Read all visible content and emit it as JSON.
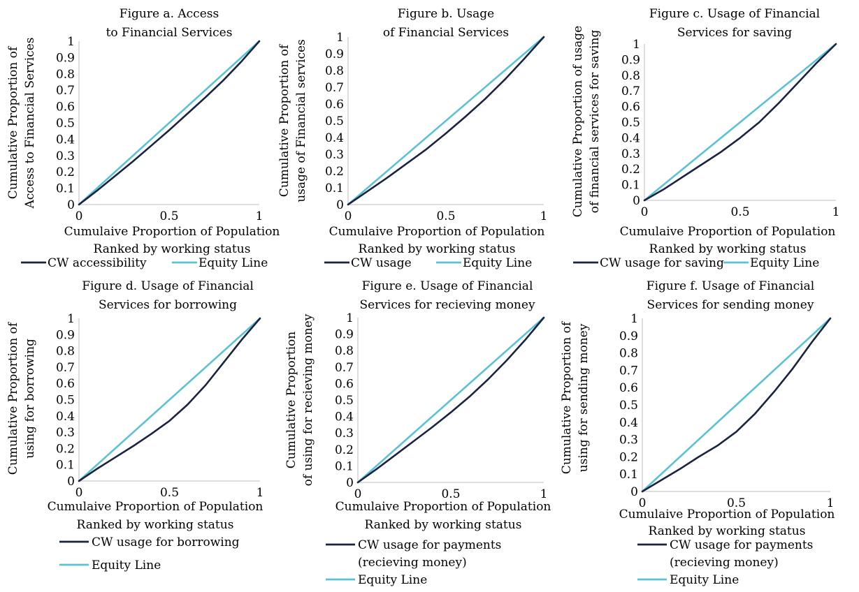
{
  "colors": {
    "cw_line": "#1a2340",
    "equity_line": "#5bc2d4",
    "axis": "#c9c9c9"
  },
  "chart_data": [
    {
      "type": "line",
      "title": [
        "Figure a. Access",
        "to Financial Services"
      ],
      "xlabel": [
        "Cumulaive Proportion of Population",
        "Ranked by working status"
      ],
      "ylabel": [
        "Cumulative Proportion of",
        "Access to Financial Services"
      ],
      "xlim": [
        0,
        1
      ],
      "ylim": [
        0,
        1
      ],
      "x_ticks": [
        "0",
        "0.5",
        "1"
      ],
      "y_ticks": [
        "0",
        "0.1",
        "0.2",
        "0.3",
        "0.4",
        "0.5",
        "0.6",
        "0.7",
        "0.8",
        "0.9",
        "1"
      ],
      "legend_position": "bottom",
      "series": [
        {
          "name": "CW accessibility",
          "x": [
            0,
            0.1,
            0.2,
            0.3,
            0.4,
            0.5,
            0.6,
            0.7,
            0.8,
            0.9,
            1
          ],
          "y": [
            0,
            0.085,
            0.175,
            0.265,
            0.36,
            0.455,
            0.555,
            0.655,
            0.76,
            0.875,
            1
          ]
        },
        {
          "name": "Equity Line",
          "x": [
            0,
            1
          ],
          "y": [
            0,
            1
          ]
        }
      ]
    },
    {
      "type": "line",
      "title": [
        "Figure b. Usage",
        "of Financial Services"
      ],
      "xlabel": [
        "Cumulaive Proportion of Population",
        "Ranked by working status"
      ],
      "ylabel": [
        "Cumulative Proportion of",
        "usage of Financial services"
      ],
      "xlim": [
        0,
        1
      ],
      "ylim": [
        0,
        1
      ],
      "x_ticks": [
        "0",
        "0.5",
        "1"
      ],
      "y_ticks": [
        "0",
        "0.1",
        "0.2",
        "0.3",
        "0.4",
        "0.5",
        "0.6",
        "0.7",
        "0.8",
        "0.9",
        "1"
      ],
      "legend_position": "bottom",
      "series": [
        {
          "name": "CW usage",
          "x": [
            0,
            0.1,
            0.2,
            0.3,
            0.4,
            0.5,
            0.6,
            0.7,
            0.8,
            0.9,
            1
          ],
          "y": [
            0,
            0.08,
            0.16,
            0.245,
            0.33,
            0.425,
            0.525,
            0.63,
            0.745,
            0.87,
            1
          ]
        },
        {
          "name": "Equity Line",
          "x": [
            0,
            1
          ],
          "y": [
            0,
            1
          ]
        }
      ]
    },
    {
      "type": "line",
      "title": [
        "Figure c. Usage of Financial",
        "Services for saving"
      ],
      "xlabel": [
        "Cumulaive Proportion of Population",
        "Ranked by working status"
      ],
      "ylabel": [
        "Cumulative Proportion of usage",
        "of financial services for saving"
      ],
      "xlim": [
        0,
        1
      ],
      "ylim": [
        0,
        1
      ],
      "x_ticks": [
        "0",
        "0.5",
        "1"
      ],
      "y_ticks": [
        "0",
        "0.1",
        "0.2",
        "0.3",
        "0.4",
        "0.5",
        "0.6",
        "0.7",
        "0.8",
        "0.9",
        "1"
      ],
      "legend_position": "bottom",
      "series": [
        {
          "name": "CW usage for saving",
          "x": [
            0,
            0.1,
            0.2,
            0.3,
            0.4,
            0.5,
            0.6,
            0.7,
            0.8,
            0.9,
            1
          ],
          "y": [
            0,
            0.07,
            0.15,
            0.23,
            0.31,
            0.4,
            0.5,
            0.62,
            0.75,
            0.88,
            1
          ]
        },
        {
          "name": "Equity Line",
          "x": [
            0,
            1
          ],
          "y": [
            0,
            1
          ]
        }
      ]
    },
    {
      "type": "line",
      "title": [
        "Figure d. Usage of Financial",
        "Services for borrowing"
      ],
      "xlabel": [
        "Cumulaive Proportion of Population",
        "Ranked by working status"
      ],
      "ylabel": [
        "Cumulative Proportion of",
        "using for borrowing"
      ],
      "xlim": [
        0,
        1
      ],
      "ylim": [
        0,
        1
      ],
      "x_ticks": [
        "0",
        "0.5",
        "1"
      ],
      "y_ticks": [
        "0",
        "0.1",
        "0.2",
        "0.3",
        "0.4",
        "0.5",
        "0.6",
        "0.7",
        "0.8",
        "0.9",
        "1"
      ],
      "legend_position": "bottom",
      "series": [
        {
          "name": "CW usage for borrowing",
          "x": [
            0,
            0.1,
            0.2,
            0.3,
            0.4,
            0.5,
            0.6,
            0.7,
            0.8,
            0.9,
            1
          ],
          "y": [
            0,
            0.075,
            0.145,
            0.215,
            0.29,
            0.37,
            0.47,
            0.59,
            0.73,
            0.87,
            1
          ]
        },
        {
          "name": "Equity Line",
          "x": [
            0,
            1
          ],
          "y": [
            0,
            1
          ]
        }
      ]
    },
    {
      "type": "line",
      "title": [
        "Figure e. Usage of Financial",
        "Services for recieving money"
      ],
      "xlabel": [
        "Cumulaive Proportion of Population",
        "Ranked by working status"
      ],
      "ylabel": [
        "Cumulative Proportion",
        "of using for recieving money"
      ],
      "xlim": [
        0,
        1
      ],
      "ylim": [
        0,
        1
      ],
      "x_ticks": [
        "0",
        "0.5",
        "1"
      ],
      "y_ticks": [
        "0",
        "0.1",
        "0.2",
        "0.3",
        "0.4",
        "0.5",
        "0.6",
        "0.7",
        "0.8",
        "0.9",
        "1"
      ],
      "legend_position": "bottom",
      "series": [
        {
          "name": "CW usage for payments (recieving money)",
          "legend_lines": [
            "CW usage for payments",
            "(recieving money)"
          ],
          "x": [
            0,
            0.1,
            0.2,
            0.3,
            0.4,
            0.5,
            0.6,
            0.7,
            0.8,
            0.9,
            1
          ],
          "y": [
            0,
            0.08,
            0.165,
            0.25,
            0.335,
            0.425,
            0.52,
            0.625,
            0.74,
            0.865,
            1
          ]
        },
        {
          "name": "Equity Line",
          "legend_lines": [
            "Equity Line"
          ],
          "x": [
            0,
            1
          ],
          "y": [
            0,
            1
          ]
        }
      ]
    },
    {
      "type": "line",
      "title": [
        "Figure f. Usage of Financial",
        "Services for sending money"
      ],
      "xlabel": [
        "Cumulaive Proportion of Population",
        "Ranked by working status"
      ],
      "ylabel": [
        "Cumulative Proportion of",
        "using for sending money"
      ],
      "xlim": [
        0,
        1
      ],
      "ylim": [
        0,
        1
      ],
      "x_ticks": [
        "0",
        "0.5",
        "1"
      ],
      "y_ticks": [
        "0",
        "0.1",
        "0.2",
        "0.3",
        "0.4",
        "0.5",
        "0.6",
        "0.7",
        "0.8",
        "0.9",
        "1"
      ],
      "legend_position": "bottom",
      "series": [
        {
          "name": "CW usage for payments (recieving money)",
          "legend_lines": [
            "CW usage for payments",
            "(recieving money)"
          ],
          "x": [
            0,
            0.1,
            0.2,
            0.3,
            0.4,
            0.5,
            0.6,
            0.7,
            0.8,
            0.9,
            1
          ],
          "y": [
            0,
            0.065,
            0.13,
            0.2,
            0.265,
            0.345,
            0.45,
            0.575,
            0.71,
            0.86,
            1
          ]
        },
        {
          "name": "Equity Line",
          "legend_lines": [
            "Equity Line"
          ],
          "x": [
            0,
            1
          ],
          "y": [
            0,
            1
          ]
        }
      ]
    }
  ]
}
